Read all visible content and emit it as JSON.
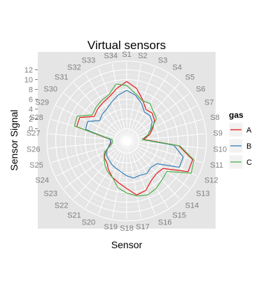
{
  "chart_data": {
    "type": "radar",
    "title": "Virtual sensors",
    "xlabel": "Sensor",
    "ylabel": "Sensor Signal",
    "coord": "polar",
    "rlim": [
      -2.5,
      13.5
    ],
    "r_ticks": [
      0,
      2,
      4,
      6,
      8,
      10,
      12
    ],
    "grid": true,
    "panel_background": "#e5e5e5",
    "grid_color": "#ffffff",
    "categories": [
      "S1",
      "S2",
      "S3",
      "S4",
      "S5",
      "S6",
      "S7",
      "S8",
      "S9",
      "S10",
      "S11",
      "S12",
      "S13",
      "S14",
      "S15",
      "S16",
      "S17",
      "S18",
      "S19",
      "S20",
      "S21",
      "S22",
      "S23",
      "S24",
      "S25",
      "S26",
      "S27",
      "S28",
      "S29",
      "S30",
      "S31",
      "S32",
      "S33",
      "S34"
    ],
    "legend": {
      "title": "gas",
      "position": "right"
    },
    "series": [
      {
        "name": "A",
        "color": "#e41a1c",
        "values": [
          9.6,
          8.4,
          6.5,
          5.0,
          5.2,
          4.6,
          3.5,
          2.4,
          1.0,
          8.2,
          11.5,
          11.5,
          6.8,
          6.5,
          7.0,
          8.3,
          8.7,
          7.2,
          6.2,
          5.5,
          4.5,
          3.5,
          3.2,
          2.3,
          1.2,
          0.7,
          0.9,
          8.1,
          8.2,
          5.8,
          6.3,
          6.7,
          7.2,
          8.4
        ]
      },
      {
        "name": "B",
        "color": "#377eb8",
        "values": [
          7.8,
          7.0,
          5.8,
          4.4,
          4.5,
          4.0,
          3.0,
          2.0,
          0.7,
          7.2,
          9.5,
          9.5,
          5.2,
          4.8,
          5.3,
          5.0,
          5.2,
          4.6,
          3.9,
          3.5,
          3.2,
          2.8,
          2.6,
          2.0,
          1.3,
          0.8,
          0.9,
          6.2,
          6.4,
          4.4,
          4.9,
          5.2,
          6.0,
          7.0
        ]
      },
      {
        "name": "C",
        "color": "#4daf4a",
        "values": [
          8.8,
          7.3,
          6.3,
          6.5,
          5.6,
          5.1,
          3.2,
          2.0,
          0.7,
          8.4,
          11.8,
          12.2,
          7.8,
          8.2,
          8.9,
          9.3,
          8.9,
          8.1,
          7.2,
          5.5,
          4.9,
          4.1,
          3.3,
          2.6,
          0.9,
          0.4,
          0.5,
          8.6,
          8.8,
          6.3,
          6.8,
          7.2,
          7.6,
          9.3
        ]
      }
    ]
  }
}
